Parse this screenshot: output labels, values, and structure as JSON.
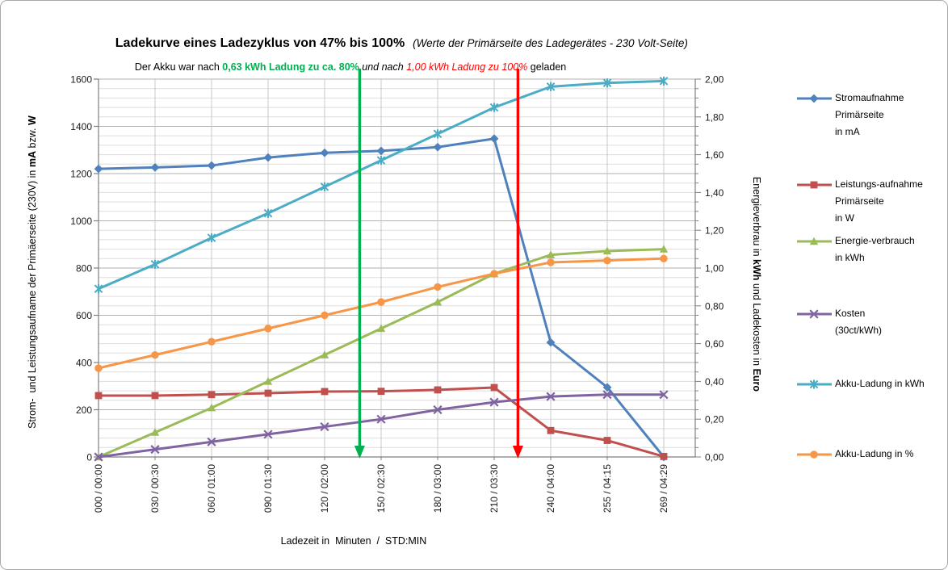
{
  "title": {
    "main": "Ladekurve eines Ladezyklus von 47% bis 100%",
    "subtitle": "(Werte der Primärseite des Ladegerätes - 230 Volt-Seite)"
  },
  "annotation": {
    "part1": "Der Akku war nach ",
    "highlight_green": "0,63 kWh Ladung zu ca. 80%",
    "part2": " und nach ",
    "highlight_red": "1,00 kWh Ladung zu 100%",
    "part3": " geladen",
    "green_color": "#00B050",
    "red_color": "#FF0000"
  },
  "chart_data": {
    "type": "line",
    "title": "Ladekurve eines Ladezyklus von 47% bis 100%",
    "categories": [
      "000 / 00:00",
      "030 / 00:30",
      "060 / 01:00",
      "090 / 01:30",
      "120 / 02:00",
      "150 / 02:30",
      "180 / 03:00",
      "210 / 03:30",
      "240 / 04:00",
      "255 / 04:15",
      "269 / 04:29"
    ],
    "minutes": [
      0,
      30,
      60,
      90,
      120,
      150,
      180,
      210,
      240,
      255,
      269
    ],
    "x_axis": {
      "title": "Ladezeit in  Minuten  /  STD:MIN"
    },
    "y_left": {
      "title_pre": "Strom-  und Leistungsaufname der Primäerseite (230V) in ",
      "unit1": "mA",
      "title_mid": " bzw. ",
      "unit2": "W",
      "min": 0,
      "max": 1600,
      "major_step": 200,
      "minor_step": 40,
      "ticks": [
        "0",
        "200",
        "400",
        "600",
        "800",
        "1000",
        "1200",
        "1400",
        "1600"
      ]
    },
    "y_right": {
      "title_pre": "Energieverbrau in ",
      "unit1": "kWh",
      "title_mid": " und Ladekosten in ",
      "unit2": "Euro",
      "min": 0,
      "max": 2,
      "major_step": 0.2,
      "minor_step": 0.05,
      "ticks": [
        "0,00",
        "0,20",
        "0,40",
        "0,60",
        "0,80",
        "1,00",
        "1,20",
        "1,40",
        "1,60",
        "1,80",
        "2,00"
      ]
    },
    "series": [
      {
        "name": "Stromaufnahme Primärseite in mA",
        "axis": "left",
        "color": "#4F81BD",
        "marker": "diamond",
        "values": [
          1220,
          1226,
          1234,
          1268,
          1288,
          1296,
          1312,
          1348,
          485,
          295,
          0
        ]
      },
      {
        "name": "Leistungs-aufnahme Primärseite in W",
        "axis": "left",
        "color": "#C0504D",
        "marker": "square",
        "values": [
          260,
          260,
          264,
          270,
          277,
          278,
          284,
          294,
          112,
          70,
          2
        ]
      },
      {
        "name": "Energie-verbrauch in kWh",
        "axis": "right",
        "color": "#9BBB59",
        "marker": "triangle",
        "values": [
          0.0,
          0.13,
          0.26,
          0.4,
          0.54,
          0.68,
          0.82,
          0.97,
          1.07,
          1.09,
          1.1
        ]
      },
      {
        "name": "Kosten (30ct/kWh)",
        "axis": "right",
        "color": "#8064A2",
        "marker": "x",
        "values": [
          0.0,
          0.04,
          0.08,
          0.12,
          0.16,
          0.2,
          0.25,
          0.29,
          0.32,
          0.33,
          0.33
        ]
      },
      {
        "name": "Akku-Ladung in kWh",
        "axis": "right",
        "color": "#4BACC6",
        "marker": "asterisk",
        "values": [
          0.89,
          1.02,
          1.16,
          1.29,
          1.43,
          1.57,
          1.71,
          1.85,
          1.96,
          1.98,
          1.99
        ]
      },
      {
        "name": "Akku-Ladung in %",
        "axis": "right",
        "color": "#F79646",
        "marker": "circle",
        "plot_scale": 0.01,
        "values": [
          47,
          54,
          61,
          68,
          75,
          82,
          90,
          97,
          103,
          104,
          105
        ]
      }
    ],
    "arrows": [
      {
        "color": "#00B050",
        "x_index": 4.62
      },
      {
        "color": "#FF0000",
        "x_index": 7.42
      }
    ],
    "grid": true,
    "legend_position": "right",
    "ylim_left": [
      0,
      1600
    ],
    "ylim_right": [
      0,
      2
    ]
  },
  "legend": {
    "items": [
      {
        "lines": [
          "Stromaufnahme",
          "Primärseite",
          "in mA"
        ],
        "marker": "diamond",
        "color": "#4F81BD"
      },
      {
        "lines": [
          "Leistungs-aufnahme",
          "Primärseite",
          "in W"
        ],
        "marker": "square",
        "color": "#C0504D"
      },
      {
        "lines": [
          "Energie-verbrauch",
          "in kWh"
        ],
        "marker": "triangle",
        "color": "#9BBB59"
      },
      {
        "lines": [
          "Kosten",
          "(30ct/kWh)"
        ],
        "marker": "x",
        "color": "#8064A2"
      },
      {
        "lines": [
          "Akku-Ladung in kWh"
        ],
        "marker": "asterisk",
        "color": "#4BACC6"
      },
      {
        "lines": [
          "Akku-Ladung in %"
        ],
        "marker": "circle",
        "color": "#F79646"
      }
    ]
  }
}
